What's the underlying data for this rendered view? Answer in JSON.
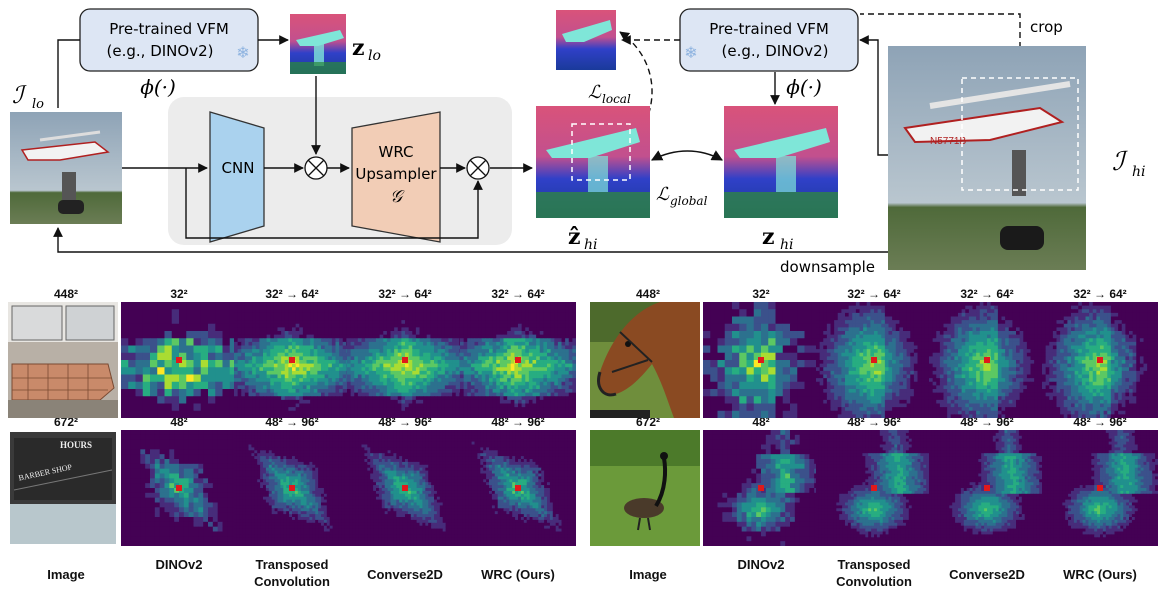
{
  "diagram": {
    "vfm_left": {
      "line1": "Pre-trained VFM",
      "line2": "(e.g., DINOv2)"
    },
    "vfm_right": {
      "line1": "Pre-trained VFM",
      "line2": "(e.g., DINOv2)"
    },
    "phi_left": "ϕ(·)",
    "phi_right": "ϕ(·)",
    "i_lo": "ℐ",
    "i_lo_sub": "lo",
    "i_hi": "ℐ",
    "i_hi_sub": "hi",
    "z_lo": "z",
    "z_lo_sub": "lo",
    "zhat_hi": "ẑ",
    "zhat_hi_sub": "hi",
    "z_hi": "z",
    "z_hi_sub": "hi",
    "cnn": "CNN",
    "wrc_line1": "WRC",
    "wrc_line2": "Upsampler",
    "wrc_g": "𝒢",
    "l_local": "ℒ",
    "l_local_sub": "local",
    "l_global": "ℒ",
    "l_global_sub": "global",
    "crop": "crop",
    "downsample": "downsample",
    "otimes": "⊗"
  },
  "grid": {
    "left": {
      "row1": [
        "448²",
        "32²",
        "32² → 64²",
        "32² → 64²",
        "32² → 64²"
      ],
      "row2": [
        "672²",
        "48²",
        "48² → 96²",
        "48² → 96²",
        "48² → 96²"
      ]
    },
    "right": {
      "row1": [
        "448²",
        "32²",
        "32² → 64²",
        "32² → 64²",
        "32² → 64²"
      ],
      "row2": [
        "672²",
        "48²",
        "48² → 96²",
        "48² → 96²",
        "48² → 96²"
      ]
    },
    "captions_left": [
      "Image",
      "DINOv2",
      "Transposed Convolution",
      "Converse2D",
      "WRC (Ours)"
    ],
    "captions_right": [
      "Image",
      "DINOv2",
      "Transposed Convolution",
      "Converse2D",
      "WRC (Ours)"
    ],
    "photo_text": {
      "hours": "HOURS",
      "shop": "BARBER SHOP"
    }
  }
}
